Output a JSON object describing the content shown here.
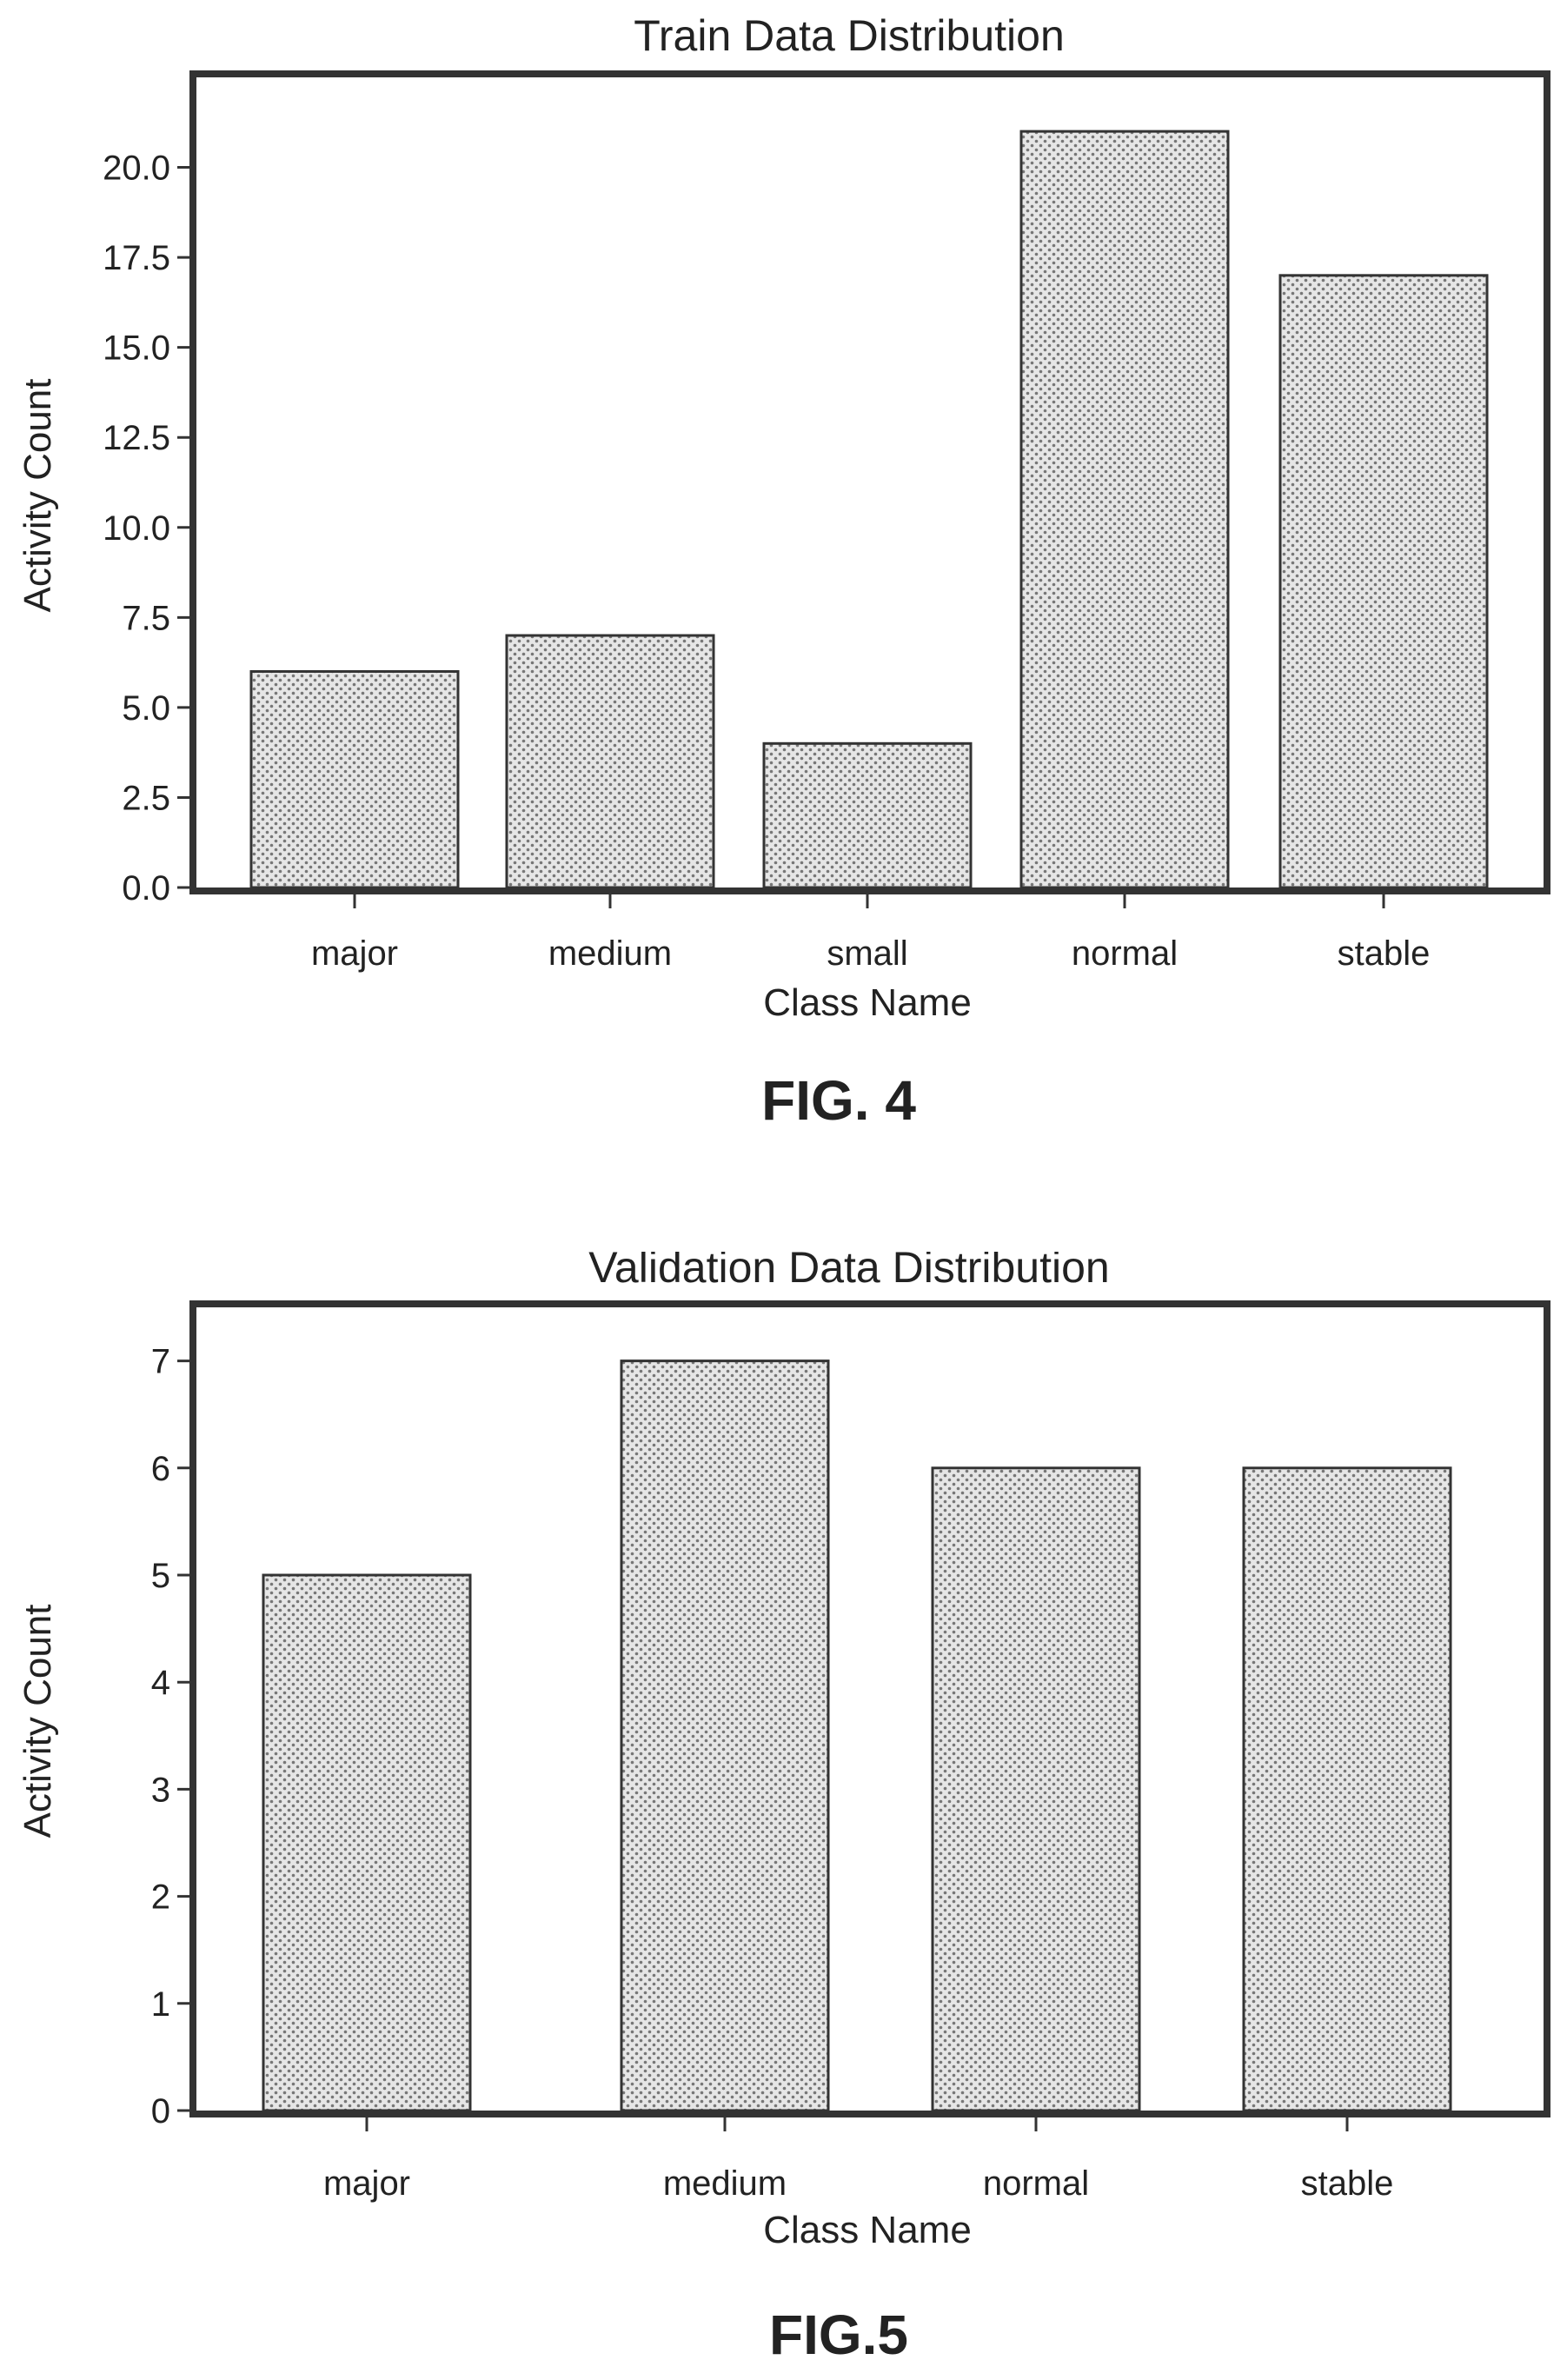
{
  "chart_data": [
    {
      "type": "bar",
      "title": "Train Data Distribution",
      "xlabel": "Class Name",
      "ylabel": "Activity Count",
      "categories": [
        "major",
        "medium",
        "small",
        "normal",
        "stable"
      ],
      "values": [
        6,
        7,
        4,
        21,
        17
      ],
      "ylim": [
        0,
        22.5
      ],
      "yticks": [
        "0.0",
        "2.5",
        "5.0",
        "7.5",
        "10.0",
        "12.5",
        "15.0",
        "17.5",
        "20.0"
      ],
      "grid": false,
      "legend": "none",
      "figure_label": "FIG. 4"
    },
    {
      "type": "bar",
      "title": "Validation Data Distribution",
      "xlabel": "Class Name",
      "ylabel": "Activity Count",
      "categories": [
        "major",
        "medium",
        "normal",
        "stable"
      ],
      "values": [
        5,
        7,
        6,
        6
      ],
      "ylim": [
        0,
        7.5
      ],
      "yticks": [
        "0",
        "1",
        "2",
        "3",
        "4",
        "5",
        "6",
        "7"
      ],
      "grid": false,
      "legend": "none",
      "figure_label": "FIG.5"
    }
  ],
  "colors": {
    "bar_fill": "#e6e6e6",
    "bar_pattern": "#777777",
    "frame": "#333333"
  }
}
